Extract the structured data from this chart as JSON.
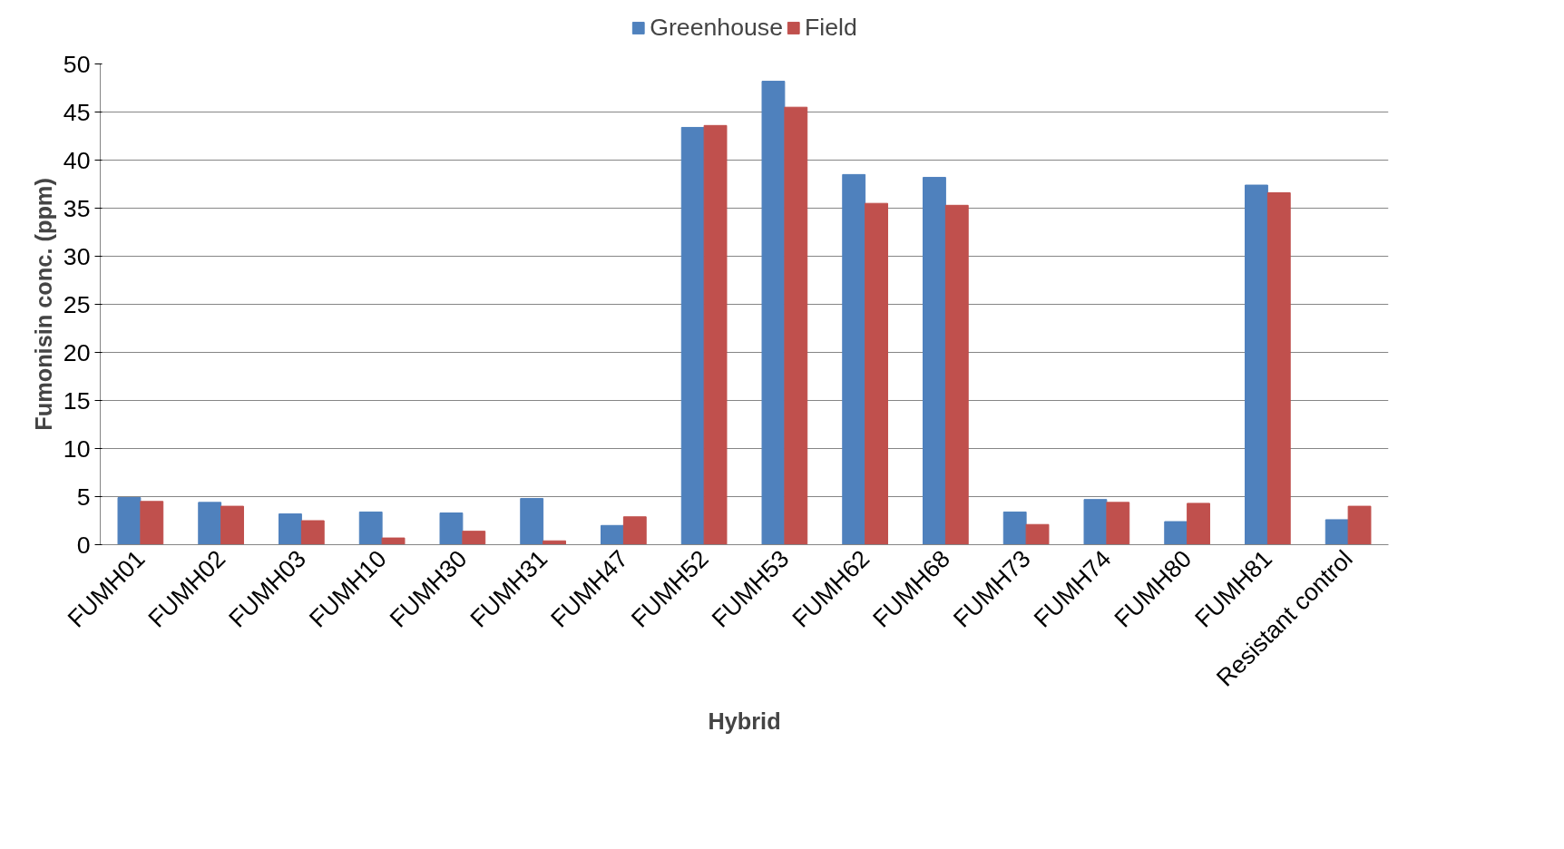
{
  "chart_data": {
    "type": "bar",
    "xlabel": "Hybrid",
    "ylabel": "Fumonisin conc. (ppm)",
    "categories": [
      "FUMH01",
      "FUMH02",
      "FUMH03",
      "FUMH10",
      "FUMH30",
      "FUMH31",
      "FUMH47",
      "FUMH52",
      "FUMH53",
      "FUMH62",
      "FUMH68",
      "FUMH73",
      "FUMH74",
      "FUMH80",
      "FUMH81",
      "Resistant control"
    ],
    "series": [
      {
        "name": "Greenhouse",
        "color": "#4f81bd",
        "values": [
          4.9,
          4.4,
          3.2,
          3.4,
          3.3,
          4.8,
          2.0,
          43.4,
          48.2,
          38.5,
          38.2,
          3.4,
          4.7,
          2.4,
          37.4,
          2.6
        ]
      },
      {
        "name": "Field",
        "color": "#c0504d",
        "values": [
          4.5,
          4.0,
          2.5,
          0.7,
          1.4,
          0.4,
          2.9,
          43.6,
          45.5,
          35.5,
          35.3,
          2.1,
          4.4,
          4.3,
          36.6,
          4.0
        ]
      }
    ],
    "ylim": [
      0,
      50
    ],
    "yticks": [
      0,
      5,
      10,
      15,
      20,
      25,
      30,
      35,
      40,
      45,
      50
    ],
    "grid": "y",
    "legend": "top"
  }
}
